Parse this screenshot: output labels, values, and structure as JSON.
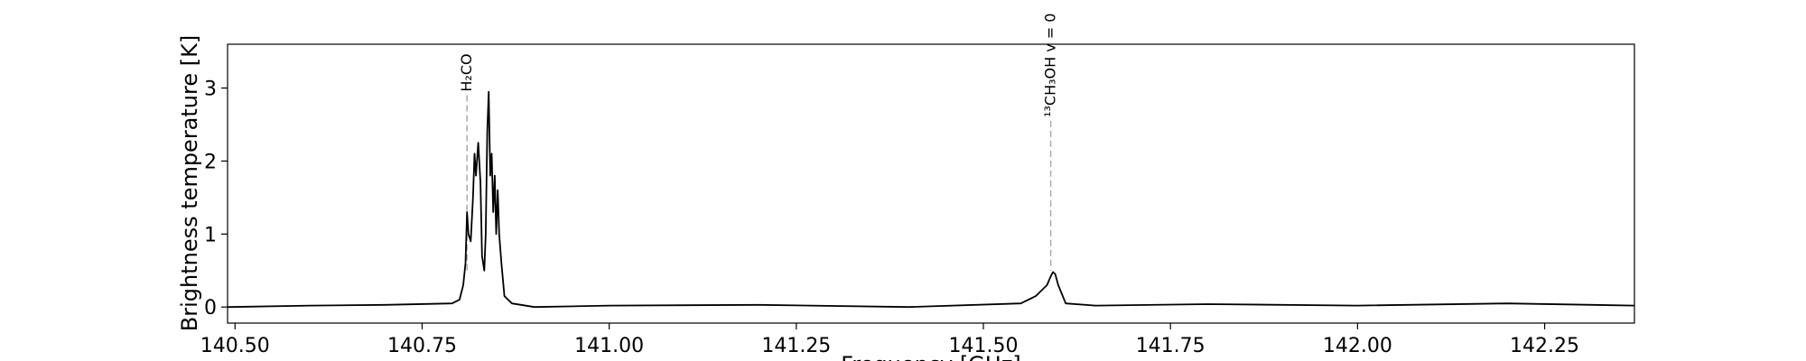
{
  "chart_data": {
    "type": "line",
    "title": "",
    "xlabel": "Frequency [GHz]",
    "ylabel": "Brightness temperature [K]",
    "xlim": [
      140.49,
      142.37
    ],
    "ylim": [
      -0.22,
      3.6
    ],
    "x_ticks": [
      140.5,
      140.75,
      141.0,
      141.25,
      141.5,
      141.75,
      142.0,
      142.25
    ],
    "x_tick_labels": [
      "140.50",
      "140.75",
      "141.00",
      "141.25",
      "141.50",
      "141.75",
      "142.00",
      "142.25"
    ],
    "y_ticks": [
      0,
      1,
      2,
      3
    ],
    "y_tick_labels": [
      "0",
      "1",
      "2",
      "3"
    ],
    "grid": false,
    "line_color": "#000000",
    "marker_line_color": "#aaaaaa",
    "series": [
      {
        "x": [
          140.49,
          140.6,
          140.7,
          140.79,
          140.8,
          140.805,
          140.808,
          140.81,
          140.812,
          140.815,
          140.818,
          140.82,
          140.822,
          140.825,
          140.828,
          140.83,
          140.833,
          140.835,
          140.837,
          140.839,
          140.841,
          140.843,
          140.845,
          140.847,
          140.849,
          140.851,
          140.853,
          140.856,
          140.86,
          140.87,
          140.9,
          141.0,
          141.2,
          141.4,
          141.55,
          141.57,
          141.58,
          141.585,
          141.59,
          141.593,
          141.596,
          141.6,
          141.61,
          141.65,
          141.8,
          142.0,
          142.2,
          142.37
        ],
        "y": [
          0.0,
          0.02,
          0.03,
          0.05,
          0.1,
          0.3,
          0.6,
          1.3,
          1.0,
          0.9,
          1.5,
          2.1,
          1.8,
          2.25,
          1.7,
          0.7,
          0.5,
          1.0,
          2.4,
          2.95,
          1.8,
          2.1,
          1.3,
          1.8,
          1.0,
          1.6,
          1.0,
          0.6,
          0.15,
          0.05,
          0.0,
          0.02,
          0.03,
          0.0,
          0.05,
          0.15,
          0.25,
          0.3,
          0.42,
          0.48,
          0.45,
          0.3,
          0.05,
          0.02,
          0.04,
          0.02,
          0.05,
          0.02
        ]
      }
    ],
    "annotations": [
      {
        "label": "H₂CO",
        "x": 140.81,
        "y_top": 2.9
      },
      {
        "label": "¹³CH₃OH v = 0",
        "x": 141.59,
        "y_top": 2.55
      }
    ]
  }
}
